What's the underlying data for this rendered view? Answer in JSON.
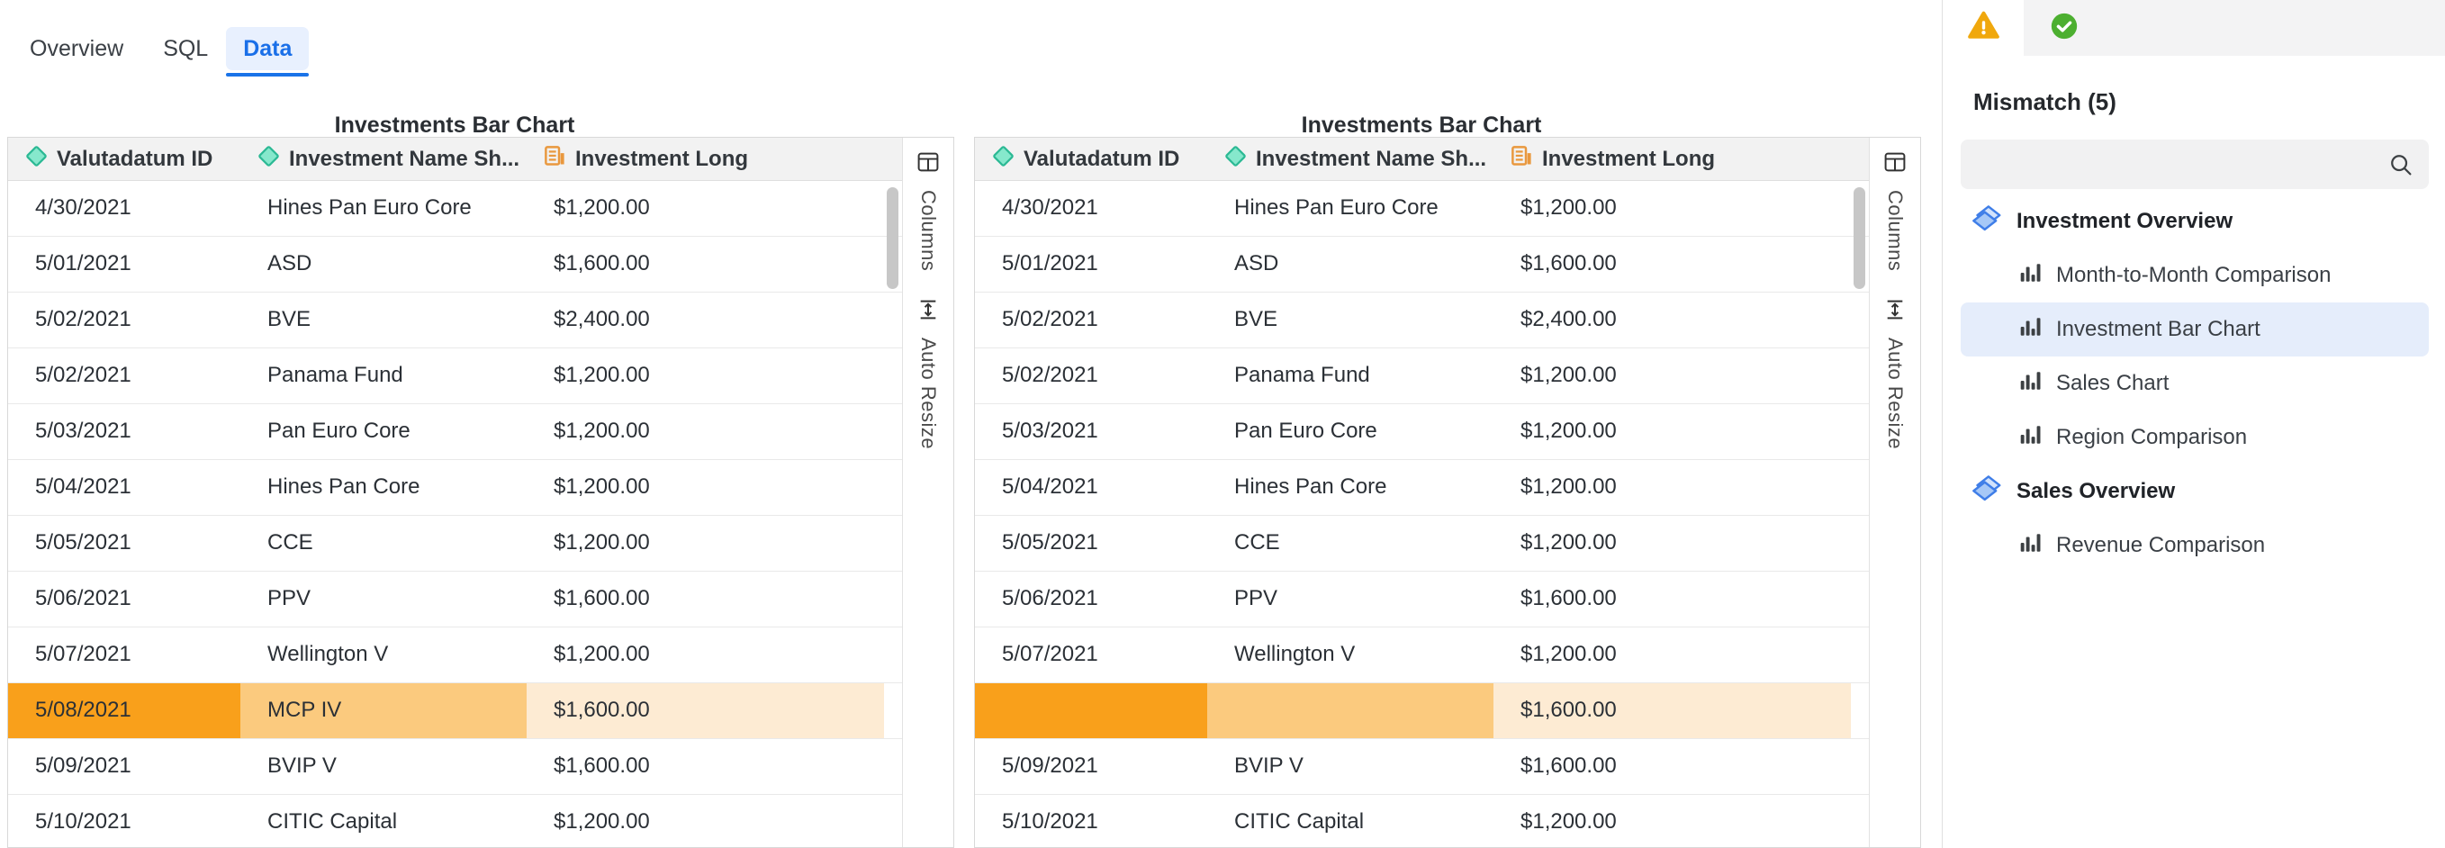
{
  "tabs": [
    {
      "label": "Overview",
      "active": false
    },
    {
      "label": "SQL",
      "active": false
    },
    {
      "label": "Data",
      "active": true
    }
  ],
  "tables": [
    {
      "title": "Investments Bar Chart",
      "columns": [
        {
          "label": "Valutadatum ID",
          "icon": "dimension-diamond-icon"
        },
        {
          "label": "Investment Name Sh...",
          "icon": "dimension-diamond-icon"
        },
        {
          "label": "Investment Long",
          "icon": "measure-icon"
        }
      ],
      "side_buttons": [
        {
          "label": "Columns",
          "icon": "columns-icon"
        },
        {
          "label": "Auto Resize",
          "icon": "auto-resize-icon"
        }
      ],
      "rows": [
        [
          "4/30/2021",
          "Hines Pan Euro Core",
          "$1,200.00"
        ],
        [
          "5/01/2021",
          "ASD",
          "$1,600.00"
        ],
        [
          "5/02/2021",
          "BVE",
          "$2,400.00"
        ],
        [
          "5/02/2021",
          "Panama Fund",
          "$1,200.00"
        ],
        [
          "5/03/2021",
          "Pan Euro Core",
          "$1,200.00"
        ],
        [
          "5/04/2021",
          "Hines Pan Core",
          "$1,200.00"
        ],
        [
          "5/05/2021",
          "CCE",
          "$1,200.00"
        ],
        [
          "5/06/2021",
          "PPV",
          "$1,600.00"
        ],
        [
          "5/07/2021",
          "Wellington V",
          "$1,200.00"
        ],
        [
          "5/08/2021",
          "MCP IV",
          "$1,600.00"
        ],
        [
          "5/09/2021",
          "BVIP V",
          "$1,600.00"
        ],
        [
          "5/10/2021",
          "CITIC Capital",
          "$1,200.00"
        ]
      ],
      "highlighted_row_index": 9
    },
    {
      "title": "Investments Bar Chart",
      "columns": [
        {
          "label": "Valutadatum ID",
          "icon": "dimension-diamond-icon"
        },
        {
          "label": "Investment Name Sh...",
          "icon": "dimension-diamond-icon"
        },
        {
          "label": "Investment Long",
          "icon": "measure-icon"
        }
      ],
      "side_buttons": [
        {
          "label": "Columns",
          "icon": "columns-icon"
        },
        {
          "label": "Auto Resize",
          "icon": "auto-resize-icon"
        }
      ],
      "rows": [
        [
          "4/30/2021",
          "Hines Pan Euro Core",
          "$1,200.00"
        ],
        [
          "5/01/2021",
          "ASD",
          "$1,600.00"
        ],
        [
          "5/02/2021",
          "BVE",
          "$2,400.00"
        ],
        [
          "5/02/2021",
          "Panama Fund",
          "$1,200.00"
        ],
        [
          "5/03/2021",
          "Pan Euro Core",
          "$1,200.00"
        ],
        [
          "5/04/2021",
          "Hines Pan Core",
          "$1,200.00"
        ],
        [
          "5/05/2021",
          "CCE",
          "$1,200.00"
        ],
        [
          "5/06/2021",
          "PPV",
          "$1,600.00"
        ],
        [
          "5/07/2021",
          "Wellington V",
          "$1,200.00"
        ],
        [
          "",
          "",
          "$1,600.00"
        ],
        [
          "5/09/2021",
          "BVIP V",
          "$1,600.00"
        ],
        [
          "5/10/2021",
          "CITIC Capital",
          "$1,200.00"
        ]
      ],
      "highlighted_row_index": 9
    }
  ],
  "sidebar": {
    "status_tabs": [
      {
        "icon": "warning-icon",
        "active": true
      },
      {
        "icon": "success-icon",
        "active": false
      }
    ],
    "heading": "Mismatch (5)",
    "search": {
      "value": "",
      "placeholder": ""
    },
    "tree": [
      {
        "label": "Investment Overview",
        "icon": "layers-icon",
        "items": [
          {
            "label": "Month-to-Month Comparison",
            "icon": "bar-chart-icon",
            "selected": false
          },
          {
            "label": "Investment Bar Chart",
            "icon": "bar-chart-icon",
            "selected": true
          },
          {
            "label": "Sales Chart",
            "icon": "bar-chart-icon",
            "selected": false
          },
          {
            "label": "Region Comparison",
            "icon": "bar-chart-icon",
            "selected": false
          }
        ]
      },
      {
        "label": "Sales Overview",
        "icon": "layers-icon",
        "items": [
          {
            "label": "Revenue Comparison",
            "icon": "bar-chart-icon",
            "selected": false
          }
        ]
      }
    ]
  },
  "colors": {
    "accent_blue": "#1A73E8",
    "tab_active_bg": "#E8F0FE",
    "table_header_bg": "#F2F2F2",
    "highlight_cell_strong": "#F9A01B",
    "highlight_cell_medium": "#FBCA7E",
    "highlight_cell_light": "#FDEBD3",
    "dimension_icon_fill": "#86E8CC",
    "dimension_icon_stroke": "#2BB994",
    "measure_icon": "#E9983E",
    "warning_icon": "#F0A80D",
    "success_icon": "#4CAF30",
    "tree_icon_blue": "#3F7EE8",
    "tree_icon_fill": "#A6C8F7",
    "selected_item_bg": "#E5EDFB"
  }
}
